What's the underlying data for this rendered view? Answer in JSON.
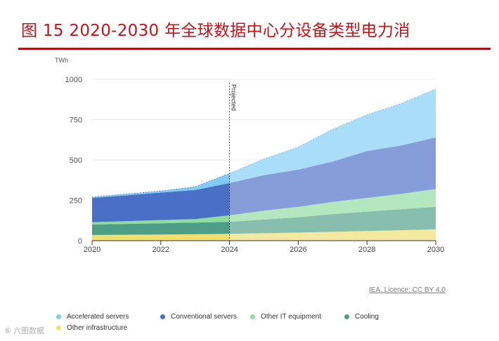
{
  "header": {
    "title": "图 15 2020-2030 年全球数据中心分设备类型电力消"
  },
  "chart_data": {
    "type": "area",
    "stacked": true,
    "unit_label": "TWh",
    "x": [
      2020,
      2021,
      2022,
      2023,
      2024,
      2025,
      2026,
      2027,
      2028,
      2029,
      2030
    ],
    "x_ticks": [
      "2020",
      "2022",
      "2024",
      "2026",
      "2028",
      "2030"
    ],
    "y_ticks": [
      "0",
      "250",
      "500",
      "750",
      "1000"
    ],
    "ylim": [
      0,
      1000
    ],
    "projection_start": 2024,
    "projection_label": "Projected",
    "series": [
      {
        "name": "Other infrastructure",
        "color": "#f1df72",
        "values": [
          35,
          37,
          38,
          40,
          42,
          46,
          50,
          55,
          60,
          65,
          70
        ]
      },
      {
        "name": "Cooling",
        "color": "#4d9e87",
        "values": [
          65,
          67,
          70,
          72,
          75,
          85,
          95,
          110,
          120,
          130,
          140
        ]
      },
      {
        "name": "Other IT equipment",
        "color": "#8fdc9f",
        "values": [
          15,
          17,
          20,
          22,
          40,
          55,
          65,
          75,
          85,
          95,
          110
        ]
      },
      {
        "name": "Conventional servers",
        "color": "#4a6fc7",
        "values": [
          150,
          160,
          170,
          180,
          200,
          220,
          230,
          250,
          290,
          300,
          320
        ]
      },
      {
        "name": "Accelerated servers",
        "color": "#80ccf5",
        "values": [
          5,
          8,
          10,
          20,
          60,
          100,
          140,
          200,
          225,
          260,
          300
        ]
      }
    ],
    "legend_position": "bottom",
    "legend_order": [
      "Accelerated servers",
      "Conventional servers",
      "Other IT equipment",
      "Cooling",
      "Other infrastructure"
    ],
    "credit": "IEA. Licence: CC BY 4.0"
  },
  "watermark": "⑥ 六图数据"
}
